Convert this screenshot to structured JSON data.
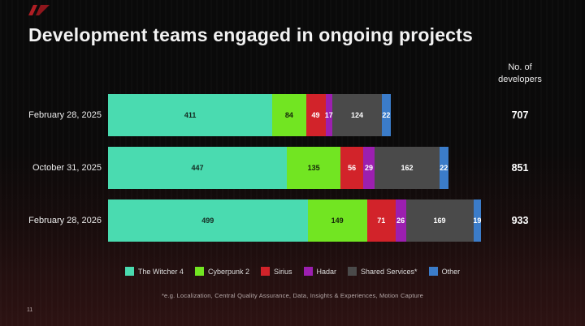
{
  "header": {
    "title": "Development teams engaged in ongoing projects",
    "right_label": {
      "line1": "No. of",
      "line2": "developers"
    }
  },
  "logo": {
    "name": "red-wedge-logo",
    "color": "#b01e24"
  },
  "chart_data": {
    "type": "bar",
    "stacked": true,
    "orientation": "horizontal",
    "categories": [
      "February 28, 2025",
      "October 31, 2025",
      "February 28, 2026"
    ],
    "series": [
      {
        "name": "The Witcher 4",
        "color": "#4adbb0",
        "label_color": "#142a21",
        "values": [
          411,
          447,
          499
        ]
      },
      {
        "name": "Cyberpunk 2",
        "color": "#72e522",
        "label_color": "#15260a",
        "values": [
          84,
          135,
          149
        ]
      },
      {
        "name": "Sirius",
        "color": "#d2232a",
        "label_color": "#ffffff",
        "values": [
          49,
          56,
          71
        ]
      },
      {
        "name": "Hadar",
        "color": "#9c1fb0",
        "label_color": "#ffffff",
        "values": [
          17,
          29,
          26
        ]
      },
      {
        "name": "Shared Services*",
        "color": "#4a4a4a",
        "label_color": "#ffffff",
        "values": [
          124,
          162,
          169
        ]
      },
      {
        "name": "Other",
        "color": "#3b7cc9",
        "label_color": "#ffffff",
        "values": [
          22,
          22,
          19
        ]
      }
    ],
    "totals": [
      707,
      851,
      933
    ],
    "totals_column_label": "No. of developers",
    "legend_position": "bottom",
    "value_labels": "inside"
  },
  "footnote": "*e.g. Localization, Central Quality Assurance, Data, Insights & Experiences, Motion Capture",
  "page_number": "11"
}
